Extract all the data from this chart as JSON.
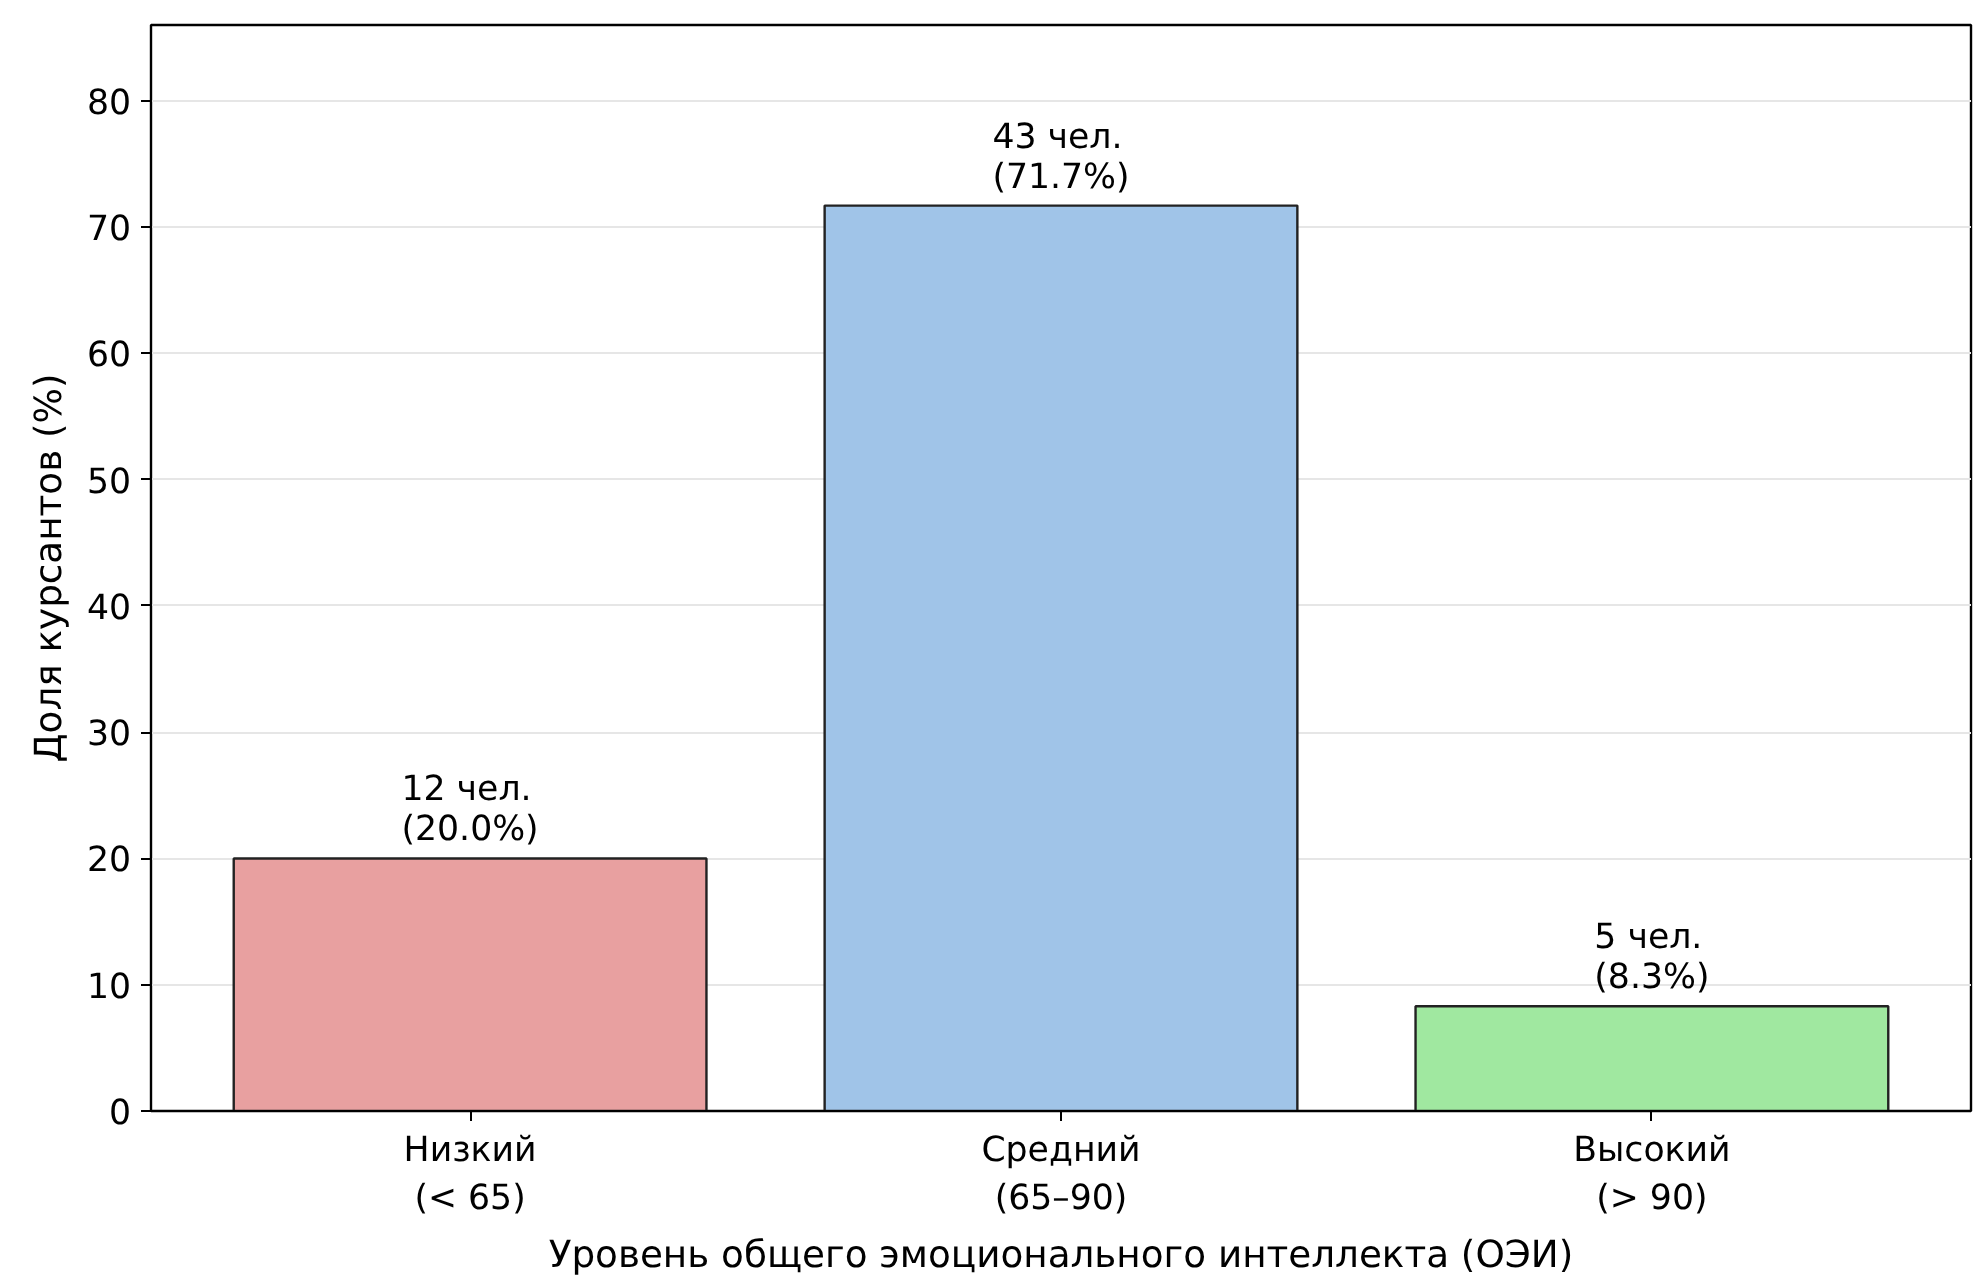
{
  "chart_data": {
    "type": "bar",
    "xlabel": "Уровень общего эмоционального интеллекта (ОЭИ)",
    "ylabel": "Доля курсантов (%)",
    "categories": [
      "Низкий\n(< 65)",
      "Средний\n(65–90)",
      "Высокий\n(> 90)"
    ],
    "values": [
      20.0,
      71.7,
      8.3
    ],
    "colors": [
      "#e8a0a0",
      "#a0c4e8",
      "#a0e8a0"
    ],
    "value_labels": [
      "12 чел.\n(20.0%)",
      "43 чел.\n(71.7%)",
      "5 чел.\n(8.3%)"
    ],
    "ylim": [
      0,
      86
    ],
    "yticks": [
      0,
      10,
      20,
      30,
      40,
      50,
      60,
      70,
      80
    ],
    "grid": "y"
  }
}
